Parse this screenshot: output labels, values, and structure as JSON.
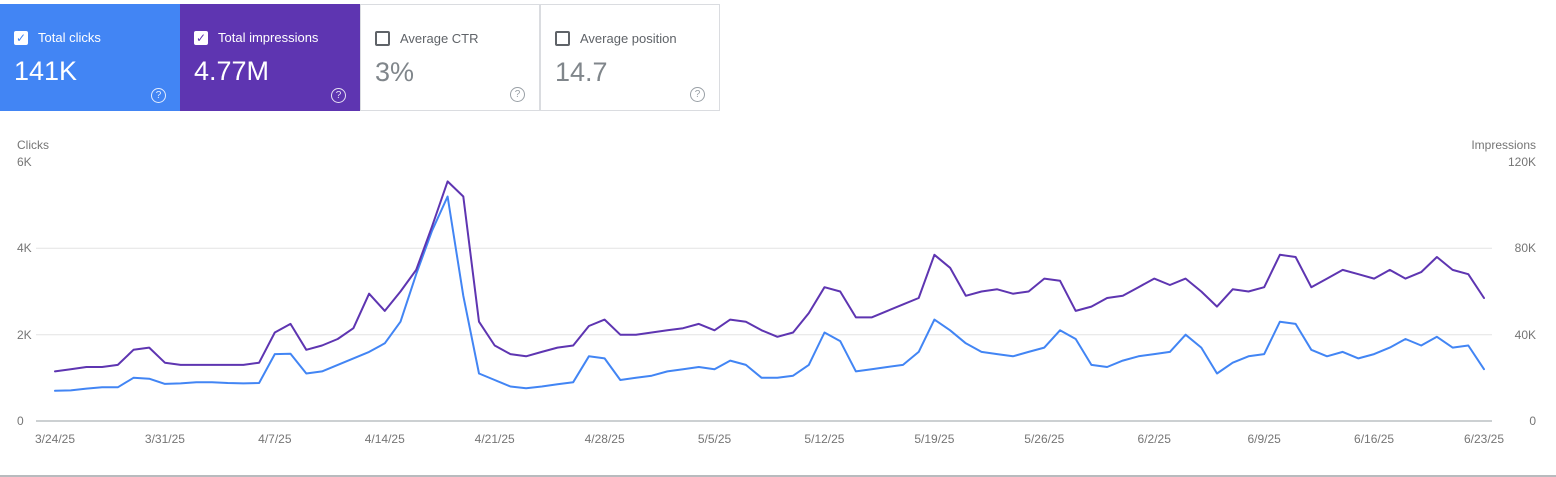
{
  "icons": {
    "check": "✓",
    "help": "?"
  },
  "cards": [
    {
      "label": "Total clicks",
      "value": "141K",
      "checked": true,
      "color": "#4285f4"
    },
    {
      "label": "Total impressions",
      "value": "4.77M",
      "checked": true,
      "color": "#5e35b1"
    },
    {
      "label": "Average CTR",
      "value": "3%",
      "checked": false
    },
    {
      "label": "Average position",
      "value": "14.7",
      "checked": false
    }
  ],
  "chart": {
    "left_axis_title": "Clicks",
    "right_axis_title": "Impressions",
    "left_ticks": [
      "6K",
      "4K",
      "2K",
      "0"
    ],
    "right_ticks": [
      "120K",
      "80K",
      "40K",
      "0"
    ]
  },
  "chart_data": {
    "type": "line",
    "x": [
      "3/24/25",
      "3/25/25",
      "3/26/25",
      "3/27/25",
      "3/28/25",
      "3/29/25",
      "3/30/25",
      "3/31/25",
      "4/1/25",
      "4/2/25",
      "4/3/25",
      "4/4/25",
      "4/5/25",
      "4/6/25",
      "4/7/25",
      "4/8/25",
      "4/9/25",
      "4/10/25",
      "4/11/25",
      "4/12/25",
      "4/13/25",
      "4/14/25",
      "4/15/25",
      "4/16/25",
      "4/17/25",
      "4/18/25",
      "4/19/25",
      "4/20/25",
      "4/21/25",
      "4/22/25",
      "4/23/25",
      "4/24/25",
      "4/25/25",
      "4/26/25",
      "4/27/25",
      "4/28/25",
      "4/29/25",
      "4/30/25",
      "5/1/25",
      "5/2/25",
      "5/3/25",
      "5/4/25",
      "5/5/25",
      "5/6/25",
      "5/7/25",
      "5/8/25",
      "5/9/25",
      "5/10/25",
      "5/11/25",
      "5/12/25",
      "5/13/25",
      "5/14/25",
      "5/15/25",
      "5/16/25",
      "5/17/25",
      "5/18/25",
      "5/19/25",
      "5/20/25",
      "5/21/25",
      "5/22/25",
      "5/23/25",
      "5/24/25",
      "5/25/25",
      "5/26/25",
      "5/27/25",
      "5/28/25",
      "5/29/25",
      "5/30/25",
      "5/31/25",
      "6/1/25",
      "6/2/25",
      "6/3/25",
      "6/4/25",
      "6/5/25",
      "6/6/25",
      "6/7/25",
      "6/8/25",
      "6/9/25",
      "6/10/25",
      "6/11/25",
      "6/12/25",
      "6/13/25",
      "6/14/25",
      "6/15/25",
      "6/16/25",
      "6/17/25",
      "6/18/25",
      "6/19/25",
      "6/20/25",
      "6/21/25",
      "6/22/25",
      "6/23/25"
    ],
    "x_tick_labels": [
      "3/24/25",
      "3/31/25",
      "4/7/25",
      "4/14/25",
      "4/21/25",
      "4/28/25",
      "5/5/25",
      "5/12/25",
      "5/19/25",
      "5/26/25",
      "6/2/25",
      "6/9/25",
      "6/16/25",
      "6/23/25"
    ],
    "series": [
      {
        "name": "Clicks",
        "color": "#4285f4",
        "axis": "left",
        "values": [
          700,
          710,
          750,
          780,
          780,
          1000,
          980,
          860,
          870,
          900,
          900,
          880,
          870,
          880,
          1550,
          1560,
          1100,
          1150,
          1300,
          1450,
          1600,
          1800,
          2300,
          3400,
          4400,
          5200,
          2900,
          1100,
          950,
          800,
          760,
          800,
          850,
          900,
          1500,
          1450,
          950,
          1000,
          1050,
          1150,
          1200,
          1250,
          1200,
          1400,
          1300,
          1000,
          1000,
          1050,
          1300,
          2050,
          1850,
          1150,
          1200,
          1250,
          1300,
          1600,
          2350,
          2100,
          1800,
          1600,
          1550,
          1500,
          1600,
          1700,
          2100,
          1900,
          1300,
          1250,
          1400,
          1500,
          1550,
          1600,
          2000,
          1700,
          1100,
          1350,
          1500,
          1550,
          2300,
          2250,
          1650,
          1500,
          1600,
          1450,
          1550,
          1700,
          1900,
          1750,
          1950,
          1700,
          1750,
          1200
        ]
      },
      {
        "name": "Impressions",
        "color": "#5e35b1",
        "axis": "right",
        "values": [
          23000,
          24000,
          25000,
          25000,
          26000,
          33000,
          34000,
          27000,
          26000,
          26000,
          26000,
          26000,
          26000,
          27000,
          41000,
          45000,
          33000,
          35000,
          38000,
          43000,
          59000,
          51000,
          60000,
          70000,
          90000,
          111000,
          104000,
          46000,
          35000,
          31000,
          30000,
          32000,
          34000,
          35000,
          44000,
          47000,
          40000,
          40000,
          41000,
          42000,
          43000,
          45000,
          42000,
          47000,
          46000,
          42000,
          39000,
          41000,
          50000,
          62000,
          60000,
          48000,
          48000,
          51000,
          54000,
          57000,
          77000,
          71000,
          58000,
          60000,
          61000,
          59000,
          60000,
          66000,
          65000,
          51000,
          53000,
          57000,
          58000,
          62000,
          66000,
          63000,
          66000,
          60000,
          53000,
          61000,
          60000,
          62000,
          77000,
          76000,
          62000,
          66000,
          70000,
          68000,
          66000,
          70000,
          66000,
          69000,
          76000,
          70000,
          68000,
          57000
        ]
      }
    ],
    "left_axis": {
      "title": "Clicks",
      "range": [
        0,
        6000
      ],
      "tick_labels": [
        "0",
        "2K",
        "4K",
        "6K"
      ]
    },
    "right_axis": {
      "title": "Impressions",
      "range": [
        0,
        120000
      ],
      "tick_labels": [
        "0",
        "40K",
        "80K",
        "120K"
      ]
    },
    "grid": "horizontal",
    "legend_position": "none"
  }
}
